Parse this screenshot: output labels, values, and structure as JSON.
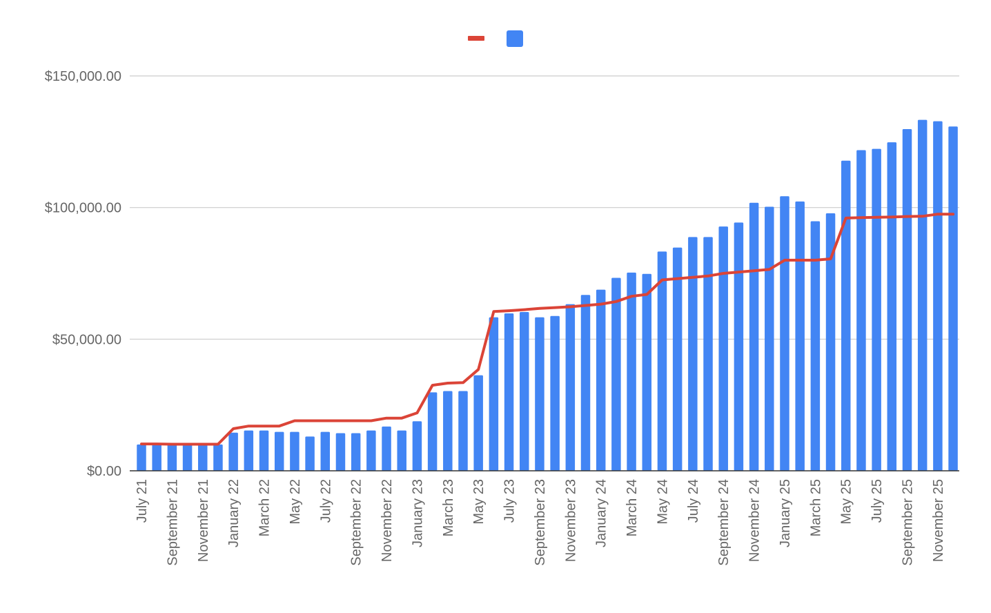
{
  "colors": {
    "bar": "#4285f4",
    "line": "#db4437",
    "grid": "#cccccc",
    "axis": "#333333",
    "text": "#666666"
  },
  "legend": {
    "position": "top-center"
  },
  "chart_data": {
    "type": "bar",
    "title": "",
    "xlabel": "",
    "ylabel": "",
    "ylim": [
      0,
      150000
    ],
    "yticks": [
      "$0.00",
      "$50,000.00",
      "$100,000.00",
      "$150,000.00"
    ],
    "ytick_values": [
      0,
      50000,
      100000,
      150000
    ],
    "grid": true,
    "categories": [
      "July 21",
      "August 21",
      "September 21",
      "October 21",
      "November 21",
      "December 21",
      "January 22",
      "February 22",
      "March 22",
      "April 22",
      "May 22",
      "June 22",
      "July 22",
      "August 22",
      "September 22",
      "October 22",
      "November 22",
      "December 22",
      "January 23",
      "February 23",
      "March 23",
      "April 23",
      "May 23",
      "June 23",
      "July 23",
      "August 23",
      "September 23",
      "October 23",
      "November 23",
      "December 23",
      "January 24",
      "February 24",
      "March 24",
      "April 24",
      "May 24",
      "June 24",
      "July 24",
      "August 24",
      "September 24",
      "October 24",
      "November 24",
      "December 24",
      "January 25",
      "February 25",
      "March 25",
      "April 25",
      "May 25",
      "June 25",
      "July 25",
      "August 25",
      "September 25",
      "October 25",
      "November 25",
      "December 25"
    ],
    "xtick_labels": [
      "July 21",
      "September 21",
      "November 21",
      "January 22",
      "March 22",
      "May 22",
      "July 22",
      "September 22",
      "November 22",
      "January 23",
      "March 23",
      "May 23",
      "July 23",
      "September 23",
      "November 23",
      "January 24",
      "March 24",
      "May 24",
      "July 24",
      "September 24",
      "November 24",
      "January 25",
      "March 25",
      "May 25",
      "July 25",
      "September 25",
      "November 25"
    ],
    "series": [
      {
        "type": "bar",
        "values": [
          10000,
          10000,
          10000,
          10000,
          10000,
          10000,
          14500,
          15300,
          15300,
          14800,
          14800,
          13000,
          14800,
          14300,
          14300,
          15300,
          16800,
          15300,
          18800,
          29800,
          30300,
          30300,
          36300,
          58300,
          59800,
          60300,
          58300,
          58800,
          63300,
          66800,
          68800,
          73300,
          75300,
          74800,
          83300,
          84800,
          88800,
          88800,
          92800,
          94300,
          101800,
          100300,
          104300,
          102300,
          94800,
          97800,
          117800,
          121800,
          122300,
          124800,
          129800,
          133300,
          132800,
          130800
        ]
      },
      {
        "type": "line",
        "values": [
          10200,
          10200,
          10100,
          10100,
          10100,
          10100,
          16000,
          17000,
          17000,
          17000,
          19000,
          19000,
          19000,
          19000,
          19000,
          19000,
          20000,
          20000,
          22000,
          32500,
          33300,
          33500,
          38500,
          60500,
          60800,
          61200,
          61700,
          62000,
          62300,
          62800,
          63300,
          64300,
          66300,
          67000,
          72500,
          73000,
          73500,
          74000,
          75000,
          75500,
          76000,
          76500,
          80000,
          80000,
          80000,
          80500,
          96000,
          96200,
          96300,
          96400,
          96600,
          96700,
          97500,
          97500
        ]
      }
    ]
  }
}
